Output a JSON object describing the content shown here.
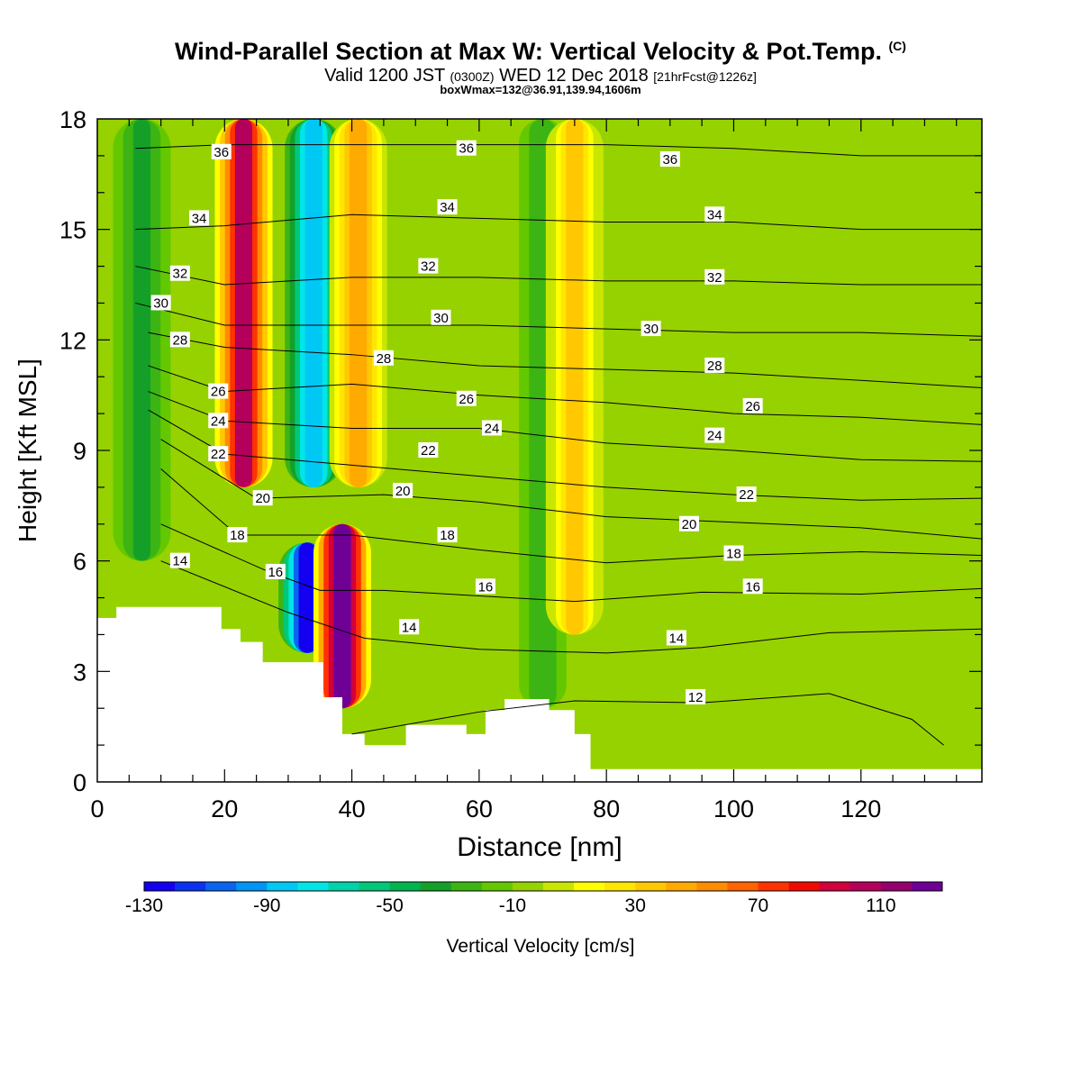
{
  "header": {
    "title": "Wind-Parallel Section at Max W: Vertical Velocity & Pot.Temp.",
    "copyright": "(C)",
    "valid_prefix": "Valid 1200 JST",
    "valid_utc": "(0300Z)",
    "valid_date": "WED 12 Dec 2018",
    "forecast_info": "[21hrFcst@1226z]",
    "box_info": "boxWmax=132@36.91,139.94,1606m"
  },
  "colors": {
    "palette": [
      "#1400f0",
      "#0a32f0",
      "#0a64f0",
      "#0096f5",
      "#00c8f5",
      "#00e6e6",
      "#00d2aa",
      "#00c878",
      "#00b450",
      "#14a028",
      "#3cb414",
      "#64c800",
      "#96d200",
      "#c8e600",
      "#ffff00",
      "#ffe600",
      "#ffc800",
      "#ffaa00",
      "#ff8c00",
      "#ff6400",
      "#ff3200",
      "#f00a00",
      "#d2003c",
      "#b4005a",
      "#96006e",
      "#6e0096"
    ],
    "terrain": "#ffffff",
    "contour": "#000000"
  },
  "chart_data": {
    "type": "heatmap",
    "xlabel": "Distance [nm]",
    "ylabel": "Height [Kft MSL]",
    "xlim": [
      0,
      139
    ],
    "ylim": [
      0,
      18
    ],
    "xticks": [
      0,
      20,
      40,
      60,
      80,
      100,
      120
    ],
    "yticks": [
      0,
      3,
      6,
      9,
      12,
      15,
      18
    ],
    "colorbar": {
      "label": "Vertical Velocity [cm/s]",
      "range": [
        -130,
        130
      ],
      "tick_values": [
        -130,
        -90,
        -50,
        -10,
        30,
        70,
        110
      ]
    },
    "velocity_features": [
      {
        "x": 23,
        "y_range": [
          8,
          18
        ],
        "w": 100,
        "sign": "updraft"
      },
      {
        "x": 34,
        "y_range": [
          8,
          18
        ],
        "w": -90,
        "sign": "downdraft"
      },
      {
        "x": 33,
        "y_range": [
          3.5,
          6.5
        ],
        "w": -130,
        "sign": "downdraft"
      },
      {
        "x": 38.5,
        "y_range": [
          2,
          7
        ],
        "w": 120,
        "sign": "updraft"
      },
      {
        "x": 41,
        "y_range": [
          8,
          18
        ],
        "w": 40,
        "sign": "updraft"
      },
      {
        "x": 7,
        "y_range": [
          6,
          18
        ],
        "w": -35,
        "sign": "downdraft"
      },
      {
        "x": 70,
        "y_range": [
          2,
          18
        ],
        "w": -30,
        "sign": "downdraft"
      },
      {
        "x": 75,
        "y_range": [
          4,
          18
        ],
        "w": 30,
        "sign": "updraft"
      }
    ],
    "theta_contours": [
      {
        "level": 12,
        "points": [
          [
            40,
            1.3
          ],
          [
            60,
            1.9
          ],
          [
            75,
            2.2
          ],
          [
            95,
            2.15
          ],
          [
            115,
            2.4
          ],
          [
            128,
            1.7
          ],
          [
            133,
            1.0
          ]
        ]
      },
      {
        "level": 14,
        "points": [
          [
            10,
            6.0
          ],
          [
            30,
            4.6
          ],
          [
            42,
            3.9
          ],
          [
            60,
            3.6
          ],
          [
            80,
            3.5
          ],
          [
            95,
            3.65
          ],
          [
            115,
            4.05
          ],
          [
            139,
            4.15
          ]
        ]
      },
      {
        "level": 16,
        "points": [
          [
            10,
            7.0
          ],
          [
            27,
            5.7
          ],
          [
            35,
            5.2
          ],
          [
            45,
            5.2
          ],
          [
            60,
            5.05
          ],
          [
            75,
            4.9
          ],
          [
            95,
            5.15
          ],
          [
            120,
            5.1
          ],
          [
            139,
            5.25
          ]
        ]
      },
      {
        "level": 18,
        "points": [
          [
            10,
            8.5
          ],
          [
            22,
            6.7
          ],
          [
            40,
            6.7
          ],
          [
            60,
            6.3
          ],
          [
            80,
            5.95
          ],
          [
            100,
            6.15
          ],
          [
            120,
            6.25
          ],
          [
            139,
            6.15
          ]
        ]
      },
      {
        "level": 20,
        "points": [
          [
            10,
            9.3
          ],
          [
            25,
            7.7
          ],
          [
            45,
            7.8
          ],
          [
            60,
            7.6
          ],
          [
            80,
            7.2
          ],
          [
            100,
            7.05
          ],
          [
            120,
            6.9
          ],
          [
            139,
            6.6
          ]
        ]
      },
      {
        "level": 22,
        "points": [
          [
            8,
            10.1
          ],
          [
            20,
            8.9
          ],
          [
            40,
            8.6
          ],
          [
            60,
            8.3
          ],
          [
            80,
            8.0
          ],
          [
            100,
            7.8
          ],
          [
            120,
            7.65
          ],
          [
            139,
            7.7
          ]
        ]
      },
      {
        "level": 24,
        "points": [
          [
            8,
            10.6
          ],
          [
            20,
            9.8
          ],
          [
            40,
            9.6
          ],
          [
            60,
            9.6
          ],
          [
            80,
            9.2
          ],
          [
            100,
            9.0
          ],
          [
            120,
            8.75
          ],
          [
            139,
            8.7
          ]
        ]
      },
      {
        "level": 26,
        "points": [
          [
            8,
            11.3
          ],
          [
            20,
            10.6
          ],
          [
            40,
            10.8
          ],
          [
            60,
            10.5
          ],
          [
            80,
            10.3
          ],
          [
            100,
            10.0
          ],
          [
            120,
            9.9
          ],
          [
            139,
            9.7
          ]
        ]
      },
      {
        "level": 28,
        "points": [
          [
            8,
            12.2
          ],
          [
            20,
            11.8
          ],
          [
            40,
            11.6
          ],
          [
            60,
            11.3
          ],
          [
            80,
            11.2
          ],
          [
            100,
            11.1
          ],
          [
            120,
            10.9
          ],
          [
            139,
            10.7
          ]
        ]
      },
      {
        "level": 30,
        "points": [
          [
            6,
            13.0
          ],
          [
            20,
            12.4
          ],
          [
            40,
            12.4
          ],
          [
            60,
            12.4
          ],
          [
            80,
            12.3
          ],
          [
            100,
            12.2
          ],
          [
            120,
            12.2
          ],
          [
            139,
            12.1
          ]
        ]
      },
      {
        "level": 32,
        "points": [
          [
            6,
            14.0
          ],
          [
            20,
            13.5
          ],
          [
            40,
            13.7
          ],
          [
            60,
            13.7
          ],
          [
            80,
            13.6
          ],
          [
            100,
            13.6
          ],
          [
            120,
            13.5
          ],
          [
            139,
            13.5
          ]
        ]
      },
      {
        "level": 34,
        "points": [
          [
            6,
            15.0
          ],
          [
            20,
            15.1
          ],
          [
            40,
            15.4
          ],
          [
            60,
            15.3
          ],
          [
            80,
            15.2
          ],
          [
            100,
            15.2
          ],
          [
            120,
            15.0
          ],
          [
            139,
            15.0
          ]
        ]
      },
      {
        "level": 36,
        "points": [
          [
            6,
            17.2
          ],
          [
            20,
            17.3
          ],
          [
            40,
            17.3
          ],
          [
            60,
            17.3
          ],
          [
            80,
            17.3
          ],
          [
            100,
            17.2
          ],
          [
            120,
            17.0
          ],
          [
            139,
            17.0
          ]
        ]
      }
    ],
    "contour_labels": [
      {
        "text": "36",
        "x": 19.5,
        "y": 17.1
      },
      {
        "text": "36",
        "x": 58,
        "y": 17.2
      },
      {
        "text": "36",
        "x": 90,
        "y": 16.9
      },
      {
        "text": "34",
        "x": 16,
        "y": 15.3
      },
      {
        "text": "34",
        "x": 55,
        "y": 15.6
      },
      {
        "text": "34",
        "x": 97,
        "y": 15.4
      },
      {
        "text": "32",
        "x": 13,
        "y": 13.8
      },
      {
        "text": "32",
        "x": 52,
        "y": 14.0
      },
      {
        "text": "32",
        "x": 97,
        "y": 13.7
      },
      {
        "text": "30",
        "x": 10,
        "y": 13.0
      },
      {
        "text": "30",
        "x": 54,
        "y": 12.6
      },
      {
        "text": "30",
        "x": 87,
        "y": 12.3
      },
      {
        "text": "28",
        "x": 13,
        "y": 12.0
      },
      {
        "text": "28",
        "x": 45,
        "y": 11.5
      },
      {
        "text": "28",
        "x": 97,
        "y": 11.3
      },
      {
        "text": "26",
        "x": 19,
        "y": 10.6
      },
      {
        "text": "26",
        "x": 58,
        "y": 10.4
      },
      {
        "text": "26",
        "x": 103,
        "y": 10.2
      },
      {
        "text": "24",
        "x": 19,
        "y": 9.8
      },
      {
        "text": "24",
        "x": 62,
        "y": 9.6
      },
      {
        "text": "24",
        "x": 97,
        "y": 9.4
      },
      {
        "text": "22",
        "x": 19,
        "y": 8.9
      },
      {
        "text": "22",
        "x": 52,
        "y": 9.0
      },
      {
        "text": "22",
        "x": 102,
        "y": 7.8
      },
      {
        "text": "20",
        "x": 26,
        "y": 7.7
      },
      {
        "text": "20",
        "x": 48,
        "y": 7.9
      },
      {
        "text": "20",
        "x": 93,
        "y": 7.0
      },
      {
        "text": "18",
        "x": 22,
        "y": 6.7
      },
      {
        "text": "18",
        "x": 55,
        "y": 6.7
      },
      {
        "text": "18",
        "x": 100,
        "y": 6.2
      },
      {
        "text": "16",
        "x": 28,
        "y": 5.7
      },
      {
        "text": "16",
        "x": 61,
        "y": 5.3
      },
      {
        "text": "16",
        "x": 103,
        "y": 5.3
      },
      {
        "text": "14",
        "x": 13,
        "y": 6.0
      },
      {
        "text": "14",
        "x": 49,
        "y": 4.2
      },
      {
        "text": "14",
        "x": 91,
        "y": 3.9
      },
      {
        "text": "12",
        "x": 94,
        "y": 2.3
      }
    ],
    "terrain": [
      [
        0,
        4.45
      ],
      [
        3,
        4.45
      ],
      [
        3,
        4.75
      ],
      [
        19.5,
        4.75
      ],
      [
        19.5,
        4.15
      ],
      [
        22.5,
        4.15
      ],
      [
        22.5,
        3.8
      ],
      [
        26,
        3.8
      ],
      [
        26,
        3.25
      ],
      [
        35.5,
        3.25
      ],
      [
        35.5,
        2.3
      ],
      [
        38.5,
        2.3
      ],
      [
        38.5,
        1.3
      ],
      [
        42,
        1.3
      ],
      [
        42,
        1.0
      ],
      [
        48.5,
        1.0
      ],
      [
        48.5,
        1.55
      ],
      [
        58,
        1.55
      ],
      [
        58,
        1.3
      ],
      [
        61,
        1.3
      ],
      [
        61,
        1.95
      ],
      [
        64,
        1.95
      ],
      [
        64,
        2.25
      ],
      [
        71,
        2.25
      ],
      [
        71,
        1.95
      ],
      [
        75,
        1.95
      ],
      [
        75,
        1.3
      ],
      [
        77.5,
        1.3
      ],
      [
        77.5,
        0.35
      ],
      [
        139,
        0.35
      ]
    ]
  }
}
